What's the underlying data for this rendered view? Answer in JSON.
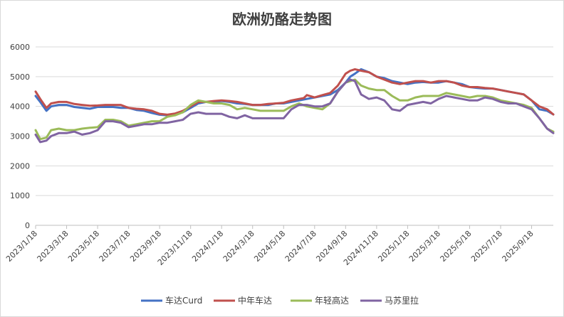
{
  "chart_data": {
    "type": "line",
    "title": "欧洲奶酪走势图",
    "xlabel": "",
    "ylabel": "",
    "ylim": [
      0,
      6000
    ],
    "yticks": [
      0,
      1000,
      2000,
      3000,
      4000,
      5000,
      6000
    ],
    "grid": true,
    "legend_position": "bottom",
    "x_tick_labels": [
      "2023/1/18",
      "2023/3/18",
      "2023/5/18",
      "2023/7/18",
      "2023/9/18",
      "2023/11/18",
      "2024/1/18",
      "2024/3/18",
      "2024/5/18",
      "2024/7/18",
      "2024/9/18",
      "2024/11/18",
      "2025/1/18",
      "2025/3/18",
      "2025/5/18",
      "2025/7/18",
      "2025/9/18"
    ],
    "x_tick_months": [
      0,
      2,
      4,
      6,
      8,
      10,
      12,
      14,
      16,
      18,
      20,
      22,
      24,
      26,
      28,
      30,
      32
    ],
    "x_range_months": [
      0,
      33.4
    ],
    "series": [
      {
        "name": "车达Curd",
        "color": "#4472C4",
        "x": [
          0,
          0.3,
          0.7,
          1.0,
          1.5,
          2.0,
          2.5,
          3.0,
          3.5,
          4.0,
          4.5,
          5.0,
          5.5,
          6.0,
          6.5,
          7.0,
          7.5,
          8.0,
          8.5,
          9.0,
          9.5,
          10.0,
          10.5,
          11.0,
          11.5,
          12.0,
          12.5,
          13.0,
          13.5,
          14.0,
          14.5,
          15.0,
          15.5,
          16.0,
          16.5,
          17.0,
          17.5,
          18.0,
          18.5,
          19.0,
          19.5,
          20.0,
          20.3,
          20.6,
          21.0,
          21.5,
          22.0,
          22.5,
          23.0,
          23.5,
          24.0,
          24.5,
          25.0,
          25.5,
          26.0,
          26.5,
          27.0,
          27.5,
          28.0,
          28.5,
          29.0,
          29.5,
          30.0,
          30.5,
          31.0,
          31.5,
          32.0,
          32.5,
          33.0,
          33.4
        ],
        "values": [
          4350,
          4150,
          3850,
          4000,
          4050,
          4050,
          3980,
          3950,
          3920,
          3980,
          3980,
          3980,
          3950,
          3950,
          3880,
          3850,
          3780,
          3720,
          3700,
          3750,
          3800,
          3950,
          4100,
          4150,
          4150,
          4180,
          4150,
          4100,
          4080,
          4050,
          4050,
          4050,
          4100,
          4100,
          4150,
          4200,
          4250,
          4300,
          4350,
          4400,
          4550,
          4800,
          5000,
          5100,
          5250,
          5150,
          5000,
          4950,
          4850,
          4800,
          4750,
          4800,
          4820,
          4800,
          4800,
          4850,
          4800,
          4750,
          4650,
          4620,
          4600,
          4600,
          4550,
          4500,
          4450,
          4400,
          4200,
          3900,
          3850,
          3730
        ]
      },
      {
        "name": "中年车达",
        "color": "#C0504D",
        "x": [
          0,
          0.3,
          0.7,
          1.0,
          1.5,
          2.0,
          2.5,
          3.0,
          3.5,
          4.0,
          4.5,
          5.0,
          5.5,
          6.0,
          6.5,
          7.0,
          7.5,
          8.0,
          8.5,
          9.0,
          9.5,
          10.0,
          10.5,
          11.0,
          11.5,
          12.0,
          12.5,
          13.0,
          13.5,
          14.0,
          14.5,
          15.0,
          15.5,
          16.0,
          16.5,
          17.0,
          17.3,
          17.5,
          18.0,
          18.5,
          19.0,
          19.5,
          20.0,
          20.3,
          20.6,
          21.0,
          21.5,
          22.0,
          22.5,
          23.0,
          23.5,
          24.0,
          24.5,
          25.0,
          25.5,
          26.0,
          26.5,
          27.0,
          27.5,
          28.0,
          28.5,
          29.0,
          29.5,
          30.0,
          30.5,
          31.0,
          31.5,
          32.0,
          32.5,
          33.0,
          33.4
        ],
        "values": [
          4500,
          4250,
          3950,
          4100,
          4150,
          4150,
          4080,
          4050,
          4020,
          4030,
          4050,
          4050,
          4050,
          3950,
          3920,
          3900,
          3850,
          3750,
          3720,
          3760,
          3850,
          4000,
          4150,
          4150,
          4180,
          4200,
          4180,
          4150,
          4100,
          4050,
          4050,
          4080,
          4100,
          4120,
          4200,
          4250,
          4280,
          4380,
          4300,
          4380,
          4450,
          4700,
          5100,
          5200,
          5250,
          5200,
          5150,
          5000,
          4900,
          4800,
          4750,
          4800,
          4850,
          4850,
          4800,
          4850,
          4850,
          4800,
          4700,
          4650,
          4650,
          4620,
          4600,
          4550,
          4500,
          4450,
          4400,
          4200,
          4000,
          3900,
          3730
        ]
      },
      {
        "name": "年轻高达",
        "color": "#9BBB59",
        "x": [
          0,
          0.3,
          0.7,
          1.0,
          1.5,
          2.0,
          2.5,
          3.0,
          3.5,
          4.0,
          4.5,
          5.0,
          5.5,
          6.0,
          6.5,
          7.0,
          7.5,
          8.0,
          8.5,
          9.0,
          9.5,
          10.0,
          10.5,
          11.0,
          11.5,
          12.0,
          12.5,
          13.0,
          13.5,
          14.0,
          14.5,
          15.0,
          15.5,
          16.0,
          16.5,
          17.0,
          17.5,
          18.0,
          18.5,
          19.0,
          19.5,
          20.0,
          20.3,
          20.6,
          21.0,
          21.5,
          22.0,
          22.5,
          23.0,
          23.5,
          24.0,
          24.5,
          25.0,
          25.5,
          26.0,
          26.5,
          27.0,
          27.5,
          28.0,
          28.5,
          29.0,
          29.5,
          30.0,
          30.5,
          31.0,
          31.5,
          32.0,
          32.5,
          33.0,
          33.4
        ],
        "values": [
          3200,
          2900,
          2950,
          3200,
          3250,
          3200,
          3200,
          3250,
          3280,
          3300,
          3550,
          3550,
          3500,
          3350,
          3400,
          3450,
          3500,
          3500,
          3650,
          3700,
          3800,
          4050,
          4200,
          4150,
          4100,
          4100,
          4050,
          3900,
          3950,
          3900,
          3850,
          3850,
          3850,
          3850,
          4000,
          4100,
          4000,
          3950,
          3900,
          4100,
          4500,
          4800,
          4850,
          4900,
          4700,
          4600,
          4550,
          4550,
          4350,
          4200,
          4200,
          4300,
          4350,
          4350,
          4350,
          4450,
          4400,
          4350,
          4300,
          4350,
          4350,
          4300,
          4200,
          4150,
          4100,
          4050,
          3950,
          3600,
          3250,
          3150
        ]
      },
      {
        "name": "马苏里拉",
        "color": "#8064A2",
        "x": [
          0,
          0.3,
          0.7,
          1.0,
          1.5,
          2.0,
          2.5,
          3.0,
          3.5,
          4.0,
          4.5,
          5.0,
          5.5,
          6.0,
          6.5,
          7.0,
          7.5,
          8.0,
          8.5,
          9.0,
          9.5,
          10.0,
          10.5,
          11.0,
          11.5,
          12.0,
          12.5,
          13.0,
          13.5,
          14.0,
          14.5,
          15.0,
          15.5,
          16.0,
          16.5,
          17.0,
          17.5,
          18.0,
          18.5,
          19.0,
          19.5,
          20.0,
          20.3,
          20.6,
          21.0,
          21.5,
          22.0,
          22.5,
          23.0,
          23.5,
          24.0,
          24.5,
          25.0,
          25.5,
          26.0,
          26.5,
          27.0,
          27.5,
          28.0,
          28.5,
          29.0,
          29.5,
          30.0,
          30.5,
          31.0,
          31.5,
          32.0,
          32.5,
          33.0,
          33.4
        ],
        "values": [
          3050,
          2800,
          2850,
          3000,
          3100,
          3100,
          3150,
          3050,
          3100,
          3200,
          3500,
          3500,
          3450,
          3300,
          3350,
          3400,
          3400,
          3450,
          3450,
          3500,
          3550,
          3750,
          3800,
          3750,
          3750,
          3750,
          3650,
          3600,
          3700,
          3600,
          3600,
          3600,
          3600,
          3600,
          3900,
          4050,
          4050,
          4000,
          4000,
          4100,
          4500,
          4800,
          4900,
          4850,
          4400,
          4250,
          4300,
          4200,
          3900,
          3850,
          4050,
          4100,
          4150,
          4100,
          4250,
          4350,
          4300,
          4250,
          4200,
          4200,
          4300,
          4250,
          4150,
          4100,
          4100,
          4000,
          3900,
          3600,
          3250,
          3100
        ]
      }
    ]
  }
}
